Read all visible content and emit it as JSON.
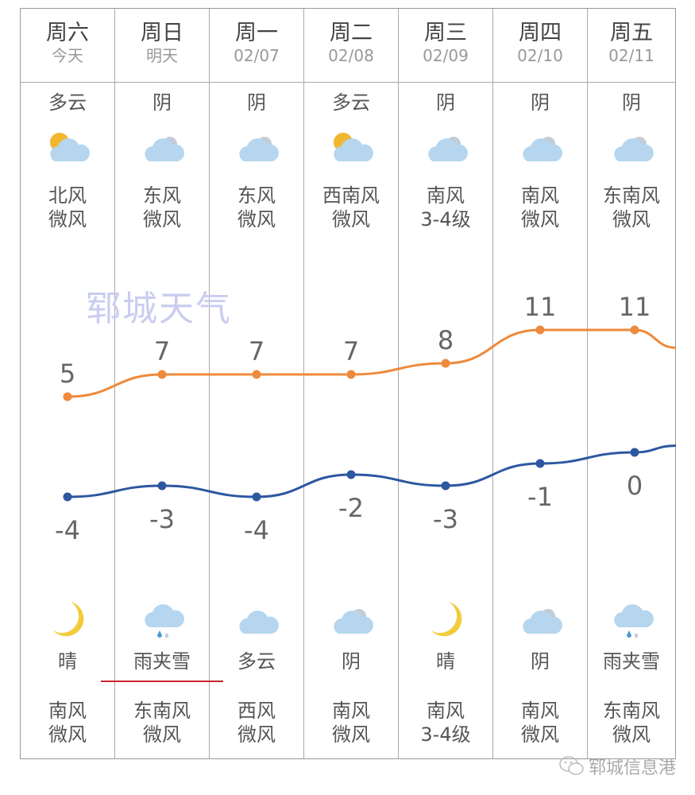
{
  "days": [
    {
      "day": "周六",
      "date": "今天",
      "day_weather": "多云",
      "day_icon": "partly-cloudy-day",
      "day_wind_dir": "北风",
      "day_wind_level": "微风",
      "high": 5,
      "low": -4,
      "night_icon": "moon",
      "night_weather": "晴",
      "night_wind_dir": "南风",
      "night_wind_level": "微风"
    },
    {
      "day": "周日",
      "date": "明天",
      "day_weather": "阴",
      "day_icon": "overcast",
      "day_wind_dir": "东风",
      "day_wind_level": "微风",
      "high": 7,
      "low": -3,
      "night_icon": "sleet",
      "night_weather": "雨夹雪",
      "night_wind_dir": "东南风",
      "night_wind_level": "微风"
    },
    {
      "day": "周一",
      "date": "02/07",
      "day_weather": "阴",
      "day_icon": "overcast",
      "day_wind_dir": "东风",
      "day_wind_level": "微风",
      "high": 7,
      "low": -4,
      "night_icon": "partly-cloudy-night",
      "night_weather": "多云",
      "night_wind_dir": "西风",
      "night_wind_level": "微风"
    },
    {
      "day": "周二",
      "date": "02/08",
      "day_weather": "多云",
      "day_icon": "partly-cloudy-day",
      "day_wind_dir": "西南风",
      "day_wind_level": "微风",
      "high": 7,
      "low": -2,
      "night_icon": "overcast",
      "night_weather": "阴",
      "night_wind_dir": "南风",
      "night_wind_level": "微风"
    },
    {
      "day": "周三",
      "date": "02/09",
      "day_weather": "阴",
      "day_icon": "overcast",
      "day_wind_dir": "南风",
      "day_wind_level": "3-4级",
      "high": 8,
      "low": -3,
      "night_icon": "moon",
      "night_weather": "晴",
      "night_wind_dir": "南风",
      "night_wind_level": "3-4级"
    },
    {
      "day": "周四",
      "date": "02/10",
      "day_weather": "阴",
      "day_icon": "overcast",
      "day_wind_dir": "南风",
      "day_wind_level": "微风",
      "high": 11,
      "low": -1,
      "night_icon": "overcast",
      "night_weather": "阴",
      "night_wind_dir": "南风",
      "night_wind_level": "微风"
    },
    {
      "day": "周五",
      "date": "02/11",
      "day_weather": "阴",
      "day_icon": "overcast",
      "day_wind_dir": "东南风",
      "day_wind_level": "微风",
      "high": 11,
      "low": 0,
      "night_icon": "sleet",
      "night_weather": "雨夹雪",
      "night_wind_dir": "东南风",
      "night_wind_level": "微风"
    }
  ],
  "colors": {
    "high_line": "#ee8a3c",
    "low_line": "#2d57a0",
    "underline": "#c8242b",
    "watermark": "#c9cdf0"
  },
  "watermark": "郓城天气",
  "footer": {
    "icon": "wechat-icon",
    "text": "郓城信息港"
  }
}
